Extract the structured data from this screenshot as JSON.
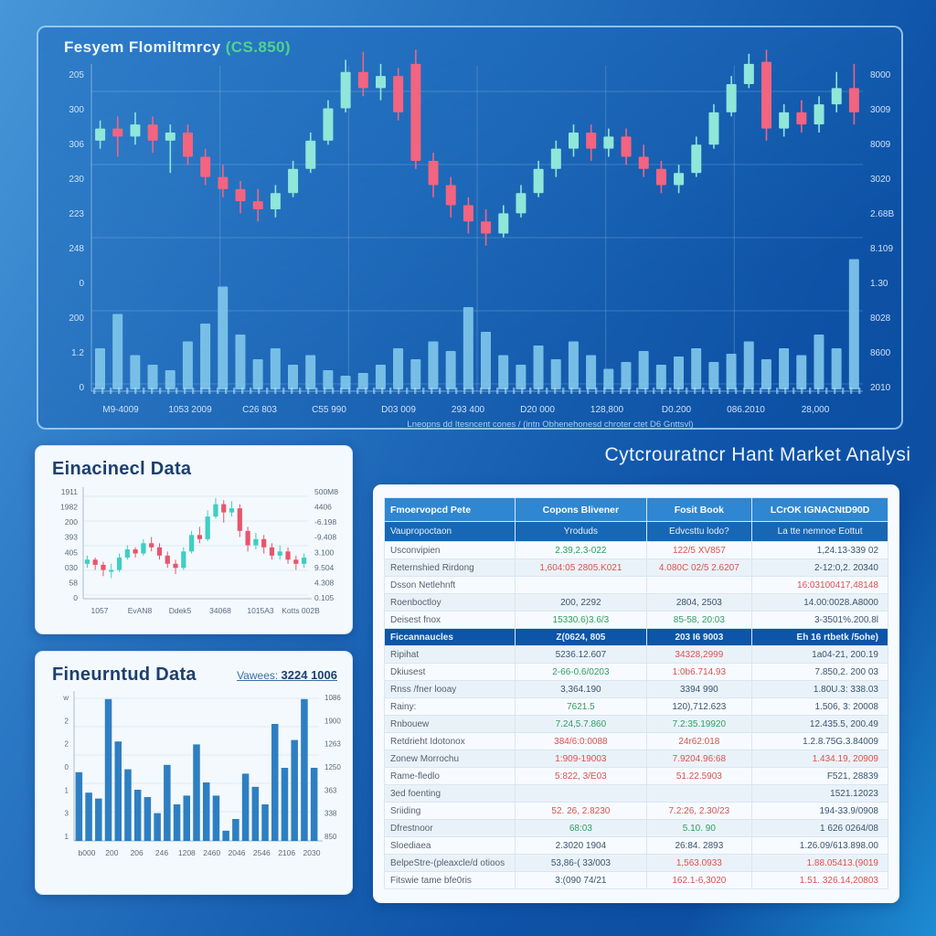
{
  "ui": {
    "main_chart_title": "Fesyem Flomiltmrcy",
    "main_chart_title_suffix": "(CS.850)",
    "panel1_title": "Einacinecl Data",
    "panel2_title": "Fineurntud Data",
    "panel2_link_label": "Vawees:",
    "panel2_link_value": "3224 1006",
    "table_title": "Cytcrouratncr Hant Market Analysi"
  },
  "colors": {
    "candle_up": "#8fe6d9",
    "candle_down": "#f26480",
    "mini_up": "#3ecec4",
    "mini_down": "#e8556d",
    "volume": "#7fc6ea",
    "bar": "#2e7fc2",
    "grid_main": "rgba(185,215,245,0.25)",
    "axis_text_main": "#cfe2f5",
    "axis_text_panel": "#5b6b7c",
    "grid_panel": "#e2eaf2",
    "green": "#2e9e60",
    "red": "#d9534f",
    "dark": "#3a5570"
  },
  "chart_data": [
    {
      "id": "main",
      "type": "candlestick",
      "title": "Fesyem Flomiltmrcy (CS.850)",
      "left_axis": [
        "205",
        "300",
        "306",
        "230",
        "223",
        "248",
        "0",
        "200",
        "1.2",
        "0"
      ],
      "right_axis": [
        "8000",
        "3009",
        "8009",
        "3020",
        "2.68B",
        "8.109",
        "1.30",
        "8028",
        "8600",
        "2010"
      ],
      "x_labels": [
        "M9-4009",
        "1053 2009",
        "C26 803",
        "C55 990",
        "D03 009",
        "293 400",
        "D20 000",
        "128,800",
        "D0.200",
        "086.2010",
        "28,000"
      ],
      "caption": "Lneopns dd Itesncent cones / (intn Obhenehonesd chroter ctet D6 Gnttsvl)",
      "candles": [
        [
          58,
          64,
          68,
          54
        ],
        [
          64,
          60,
          70,
          50
        ],
        [
          60,
          66,
          72,
          56
        ],
        [
          66,
          58,
          70,
          52
        ],
        [
          58,
          62,
          66,
          42
        ],
        [
          62,
          50,
          66,
          46
        ],
        [
          50,
          40,
          54,
          36
        ],
        [
          40,
          34,
          46,
          30
        ],
        [
          34,
          28,
          38,
          22
        ],
        [
          28,
          24,
          34,
          18
        ],
        [
          24,
          32,
          36,
          20
        ],
        [
          32,
          44,
          48,
          30
        ],
        [
          44,
          58,
          62,
          42
        ],
        [
          58,
          74,
          78,
          56
        ],
        [
          74,
          92,
          98,
          72
        ],
        [
          92,
          84,
          102,
          80
        ],
        [
          84,
          90,
          96,
          78
        ],
        [
          90,
          72,
          94,
          68
        ],
        [
          96,
          48,
          103,
          44
        ],
        [
          48,
          36,
          52,
          30
        ],
        [
          36,
          26,
          40,
          20
        ],
        [
          26,
          18,
          30,
          12
        ],
        [
          18,
          12,
          24,
          6
        ],
        [
          12,
          22,
          26,
          10
        ],
        [
          22,
          32,
          36,
          20
        ],
        [
          32,
          44,
          48,
          30
        ],
        [
          44,
          54,
          58,
          40
        ],
        [
          54,
          62,
          66,
          50
        ],
        [
          62,
          54,
          66,
          48
        ],
        [
          54,
          60,
          64,
          50
        ],
        [
          60,
          50,
          64,
          46
        ],
        [
          50,
          44,
          56,
          40
        ],
        [
          44,
          36,
          48,
          32
        ],
        [
          36,
          42,
          46,
          32
        ],
        [
          42,
          56,
          60,
          40
        ],
        [
          56,
          72,
          76,
          54
        ],
        [
          72,
          86,
          90,
          70
        ],
        [
          86,
          96,
          101,
          84
        ],
        [
          97,
          64,
          103,
          58
        ],
        [
          64,
          72,
          76,
          60
        ],
        [
          72,
          66,
          78,
          62
        ],
        [
          66,
          76,
          80,
          62
        ],
        [
          76,
          84,
          92,
          72
        ],
        [
          84,
          72,
          96,
          66
        ]
      ],
      "volume": [
        0.3,
        0.55,
        0.25,
        0.18,
        0.14,
        0.35,
        0.48,
        0.75,
        0.4,
        0.22,
        0.3,
        0.18,
        0.25,
        0.14,
        0.1,
        0.12,
        0.18,
        0.3,
        0.22,
        0.35,
        0.28,
        0.6,
        0.42,
        0.25,
        0.18,
        0.32,
        0.22,
        0.35,
        0.25,
        0.15,
        0.2,
        0.28,
        0.18,
        0.24,
        0.3,
        0.2,
        0.26,
        0.35,
        0.22,
        0.3,
        0.25,
        0.4,
        0.3,
        0.95
      ]
    },
    {
      "id": "panel1",
      "type": "candlestick",
      "title": "Einacinecl Data",
      "left_axis": [
        "1911",
        "1982",
        "200",
        "393",
        "405",
        "030",
        "58",
        "0"
      ],
      "right_axis": [
        "500M8",
        "4406",
        "-6.198",
        "-9.408",
        "3.100",
        "9.504",
        "4.308",
        "0.105"
      ],
      "x_labels": [
        "1057",
        "EvAN8",
        "Ddek5",
        "34068",
        "1015A3",
        "Kotts 002B"
      ],
      "candles": [
        [
          34,
          38,
          42,
          30
        ],
        [
          38,
          33,
          40,
          28
        ],
        [
          33,
          28,
          36,
          22
        ],
        [
          28,
          28,
          34,
          20
        ],
        [
          28,
          40,
          44,
          26
        ],
        [
          40,
          48,
          52,
          38
        ],
        [
          48,
          44,
          50,
          40
        ],
        [
          44,
          54,
          58,
          42
        ],
        [
          54,
          50,
          60,
          46
        ],
        [
          50,
          42,
          54,
          38
        ],
        [
          42,
          34,
          46,
          30
        ],
        [
          34,
          30,
          38,
          24
        ],
        [
          30,
          46,
          50,
          28
        ],
        [
          46,
          62,
          66,
          44
        ],
        [
          62,
          58,
          70,
          54
        ],
        [
          58,
          80,
          86,
          56
        ],
        [
          80,
          92,
          98,
          78
        ],
        [
          92,
          84,
          96,
          74
        ],
        [
          84,
          88,
          95,
          80
        ],
        [
          88,
          66,
          92,
          60
        ],
        [
          66,
          52,
          70,
          46
        ],
        [
          52,
          58,
          64,
          48
        ],
        [
          58,
          50,
          62,
          44
        ],
        [
          50,
          42,
          54,
          38
        ],
        [
          42,
          46,
          52,
          38
        ],
        [
          46,
          38,
          50,
          34
        ],
        [
          38,
          34,
          42,
          28
        ],
        [
          34,
          40,
          44,
          30
        ]
      ]
    },
    {
      "id": "panel2",
      "type": "bar",
      "title": "Fineurntud Data",
      "left_axis": [
        "w",
        "2",
        "2",
        "0",
        "1",
        "3",
        "1"
      ],
      "right_axis": [
        "1086",
        "1900",
        "1263",
        "1250",
        "363",
        "338",
        "850"
      ],
      "x_labels": [
        "b000",
        "200",
        "206",
        "246",
        "1208",
        "2460",
        "2046",
        "2546",
        "2106",
        "2030"
      ],
      "values": [
        0.47,
        0.33,
        0.29,
        0.97,
        0.68,
        0.49,
        0.35,
        0.3,
        0.19,
        0.52,
        0.25,
        0.31,
        0.66,
        0.4,
        0.31,
        0.07,
        0.15,
        0.46,
        0.37,
        0.25,
        0.8,
        0.5,
        0.69,
        0.97,
        0.5
      ]
    }
  ],
  "table": {
    "title": "Cytcrouratncr Hant Market Analysi",
    "header1": [
      "Fmoervopcd Pete",
      "Copons Blivener",
      "Fosit Book",
      "LCrOK IGNACNtD90D"
    ],
    "header2": [
      "Vaupropoctaon",
      "Yroduds",
      "Edvcsttu lodo?",
      "La tte nemnoe Eottut"
    ],
    "rows": [
      {
        "label": "Usconvipien",
        "c2": "2.39,2.3-022",
        "k2": "g",
        "c3": "122/5 XV857",
        "k3": "r",
        "c4": "1,24.13-339 02",
        "k4": "d"
      },
      {
        "label": "Reternshied Rirdong",
        "c2": "1,604:05 2805.K021",
        "k2": "r",
        "c3": "4.080C 02/5 2.6207",
        "k3": "r",
        "c4": "2-12:0,2. 20340",
        "k4": "d"
      },
      {
        "label": "Dsson Netlehnft",
        "c2": "",
        "k2": "d",
        "c3": "",
        "k3": "d",
        "c4": "16:03100417,48148",
        "k4": "r"
      },
      {
        "label": "Roenboctloy",
        "c2": "200, 2292",
        "k2": "d",
        "c3": "2804, 2503",
        "k3": "d",
        "c4": "14.00:0028.A8000",
        "k4": "d"
      },
      {
        "label": "Deisest fnox",
        "c2": "15330.6)3.6/3",
        "k2": "g",
        "c3": "85-58, 20:03",
        "k3": "g",
        "c4": "3-3501%.200.8l",
        "k4": "d"
      },
      {
        "section": true,
        "label": "Ficcannaucles",
        "c2": "Z(0624, 805",
        "c3": "203 I6 9003",
        "c4": "Eh 16 rtbetk /5ohe)"
      },
      {
        "label": "Ripihat",
        "c2": "5236.12.607",
        "k2": "d",
        "c3": "34328,2999",
        "k3": "r",
        "c4": "1a04-21, 200.19",
        "k4": "d"
      },
      {
        "label": "Dkiusest",
        "c2": "2-66-0.6/0203",
        "k2": "g",
        "c3": "1:0b6.714.93",
        "k3": "r",
        "c4": "7.850,2. 200 03",
        "k4": "d"
      },
      {
        "label": "Rnss /fner looay",
        "c2": "3,364.190",
        "k2": "d",
        "c3": "3394 990",
        "k3": "d",
        "c4": "1.80U.3: 338.03",
        "k4": "d"
      },
      {
        "label": "Rainy:",
        "c2": "7621.5",
        "k2": "g",
        "c3": "120),712.623",
        "k3": "d",
        "c4": "1.506, 3: 20008",
        "k4": "d"
      },
      {
        "label": "Rnbouew",
        "c2": "7.24,5.7.860",
        "k2": "g",
        "c3": "7.2:35.19920",
        "k3": "g",
        "c4": "12.435.5, 200.49",
        "k4": "d"
      },
      {
        "label": "Retdrieht Idotonox",
        "c2": "384/6:0:0088",
        "k2": "r",
        "c3": "24r62:018",
        "k3": "r",
        "c4": "1.2.8.75G.3.84009",
        "k4": "d"
      },
      {
        "label": "Zonew Morrochu",
        "c2": "1:909-19003",
        "k2": "r",
        "c3": "7.9204.96:68",
        "k3": "r",
        "c4": "1.434.19, 20909",
        "k4": "r"
      },
      {
        "label": "Rame-fledlo",
        "c2": "5:822, 3/E03",
        "k2": "r",
        "c3": "51.22.5903",
        "k3": "r",
        "c4": "F521, 28839",
        "k4": "d"
      },
      {
        "label": "3ed foenting",
        "c2": "",
        "k2": "d",
        "c3": "",
        "k3": "d",
        "c4": "1521.12023",
        "k4": "d"
      },
      {
        "label": "Sriiding",
        "c2": "52. 26, 2.8230",
        "k2": "r",
        "c3": "7.2:26, 2.30/23",
        "k3": "r",
        "c4": "194-33.9/0908",
        "k4": "d"
      },
      {
        "label": "Dfrestnoor",
        "c2": "68:03",
        "k2": "g",
        "c3": "5.10. 90",
        "k3": "g",
        "c4": "1 626 0264/08",
        "k4": "d"
      },
      {
        "label": "Sloediaea",
        "c2": "2.3020 1904",
        "k2": "d",
        "c3": "26:84. 2893",
        "k3": "d",
        "c4": "1.26.09/613.898.00",
        "k4": "d"
      },
      {
        "label": "BelpeStre-(pleaxcle/d otioos",
        "c2": "53,86-( 33/003",
        "k2": "d",
        "c3": "1,563.0933",
        "k3": "r",
        "c4": "1.88.05413.(9019",
        "k4": "r"
      },
      {
        "label": "Fitswie tame bfe0ris",
        "c2": "3:(090 74/21",
        "k2": "d",
        "c3": "162.1-6,3020",
        "k3": "r",
        "c4": "1.51. 326.14,20803",
        "k4": "r"
      }
    ]
  }
}
